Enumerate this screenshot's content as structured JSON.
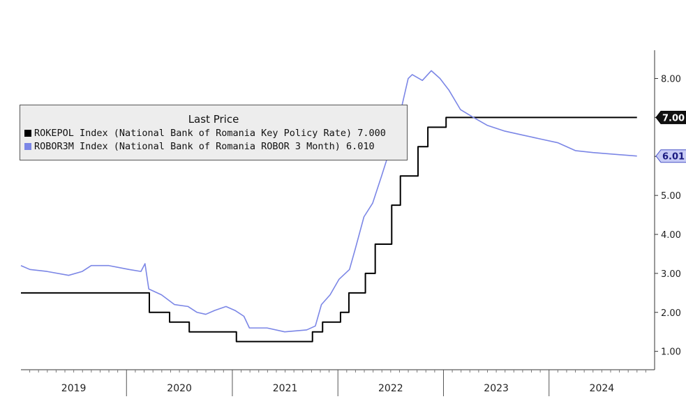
{
  "chart_data": {
    "type": "line",
    "title": "",
    "legend": {
      "title": "Last Price",
      "placement": "top-left",
      "entries": [
        {
          "label": "ROKEPOL Index (National Bank of Romania Key Policy Rate) 7.000",
          "color": "#000000"
        },
        {
          "label": "ROBOR3M Index (National Bank of Romania ROBOR 3 Month) 6.010",
          "color": "#7b86e6"
        }
      ]
    },
    "y_axis": {
      "side": "right",
      "ylim": [
        0.6,
        8.6
      ],
      "ticks": [
        "1.00",
        "2.00",
        "3.00",
        "4.00",
        "5.00",
        "6.00",
        "7.00",
        "8.00"
      ]
    },
    "x_axis": {
      "years": [
        "2019",
        "2020",
        "2021",
        "2022",
        "2023",
        "2024"
      ],
      "xlim": [
        "2019-01-01",
        "2024-12-31"
      ]
    },
    "last_value_tags": [
      {
        "series": "ROKEPOL Index",
        "value": 7.0,
        "label": "7.00"
      },
      {
        "series": "ROBOR3M Index",
        "value": 6.01,
        "label": "6.01"
      }
    ],
    "grid": false,
    "series": [
      {
        "name": "ROKEPOL Index",
        "color": "#000000",
        "step": true,
        "points": [
          [
            "2019-01-01",
            2.5
          ],
          [
            "2020-03-20",
            2.0
          ],
          [
            "2020-05-29",
            1.75
          ],
          [
            "2020-08-05",
            1.5
          ],
          [
            "2021-01-15",
            1.25
          ],
          [
            "2021-10-05",
            1.5
          ],
          [
            "2021-11-09",
            1.75
          ],
          [
            "2022-01-10",
            2.0
          ],
          [
            "2022-02-08",
            2.5
          ],
          [
            "2022-04-06",
            3.0
          ],
          [
            "2022-05-10",
            3.75
          ],
          [
            "2022-07-06",
            4.75
          ],
          [
            "2022-08-05",
            5.5
          ],
          [
            "2022-10-05",
            6.25
          ],
          [
            "2022-11-08",
            6.75
          ],
          [
            "2023-01-10",
            7.0
          ],
          [
            "2024-10-31",
            7.0
          ]
        ]
      },
      {
        "name": "ROBOR3M Index",
        "color": "#7b86e6",
        "step": false,
        "points": [
          [
            "2019-01-01",
            3.2
          ],
          [
            "2019-02-01",
            3.1
          ],
          [
            "2019-04-01",
            3.05
          ],
          [
            "2019-06-15",
            2.95
          ],
          [
            "2019-08-01",
            3.05
          ],
          [
            "2019-09-01",
            3.2
          ],
          [
            "2019-11-01",
            3.2
          ],
          [
            "2020-01-10",
            3.1
          ],
          [
            "2020-02-20",
            3.05
          ],
          [
            "2020-03-05",
            3.25
          ],
          [
            "2020-03-18",
            2.6
          ],
          [
            "2020-05-01",
            2.45
          ],
          [
            "2020-06-15",
            2.2
          ],
          [
            "2020-08-01",
            2.15
          ],
          [
            "2020-09-01",
            2.0
          ],
          [
            "2020-10-01",
            1.95
          ],
          [
            "2020-11-01",
            2.05
          ],
          [
            "2020-12-10",
            2.15
          ],
          [
            "2021-01-10",
            2.05
          ],
          [
            "2021-02-10",
            1.9
          ],
          [
            "2021-03-01",
            1.6
          ],
          [
            "2021-05-01",
            1.6
          ],
          [
            "2021-07-01",
            1.5
          ],
          [
            "2021-09-15",
            1.55
          ],
          [
            "2021-10-15",
            1.65
          ],
          [
            "2021-11-05",
            2.2
          ],
          [
            "2021-12-05",
            2.45
          ],
          [
            "2022-01-05",
            2.85
          ],
          [
            "2022-02-10",
            3.1
          ],
          [
            "2022-03-01",
            3.6
          ],
          [
            "2022-04-01",
            4.45
          ],
          [
            "2022-05-01",
            4.8
          ],
          [
            "2022-06-01",
            5.5
          ],
          [
            "2022-07-01",
            6.2
          ],
          [
            "2022-08-01",
            7.0
          ],
          [
            "2022-09-01",
            8.0
          ],
          [
            "2022-09-15",
            8.1
          ],
          [
            "2022-10-20",
            7.95
          ],
          [
            "2022-11-20",
            8.2
          ],
          [
            "2022-12-20",
            8.0
          ],
          [
            "2023-01-20",
            7.7
          ],
          [
            "2023-03-01",
            7.2
          ],
          [
            "2023-04-15",
            7.0
          ],
          [
            "2023-06-01",
            6.8
          ],
          [
            "2023-08-01",
            6.65
          ],
          [
            "2023-10-01",
            6.55
          ],
          [
            "2023-12-01",
            6.45
          ],
          [
            "2024-02-01",
            6.35
          ],
          [
            "2024-04-01",
            6.15
          ],
          [
            "2024-06-01",
            6.1
          ],
          [
            "2024-10-31",
            6.01
          ]
        ]
      }
    ]
  }
}
